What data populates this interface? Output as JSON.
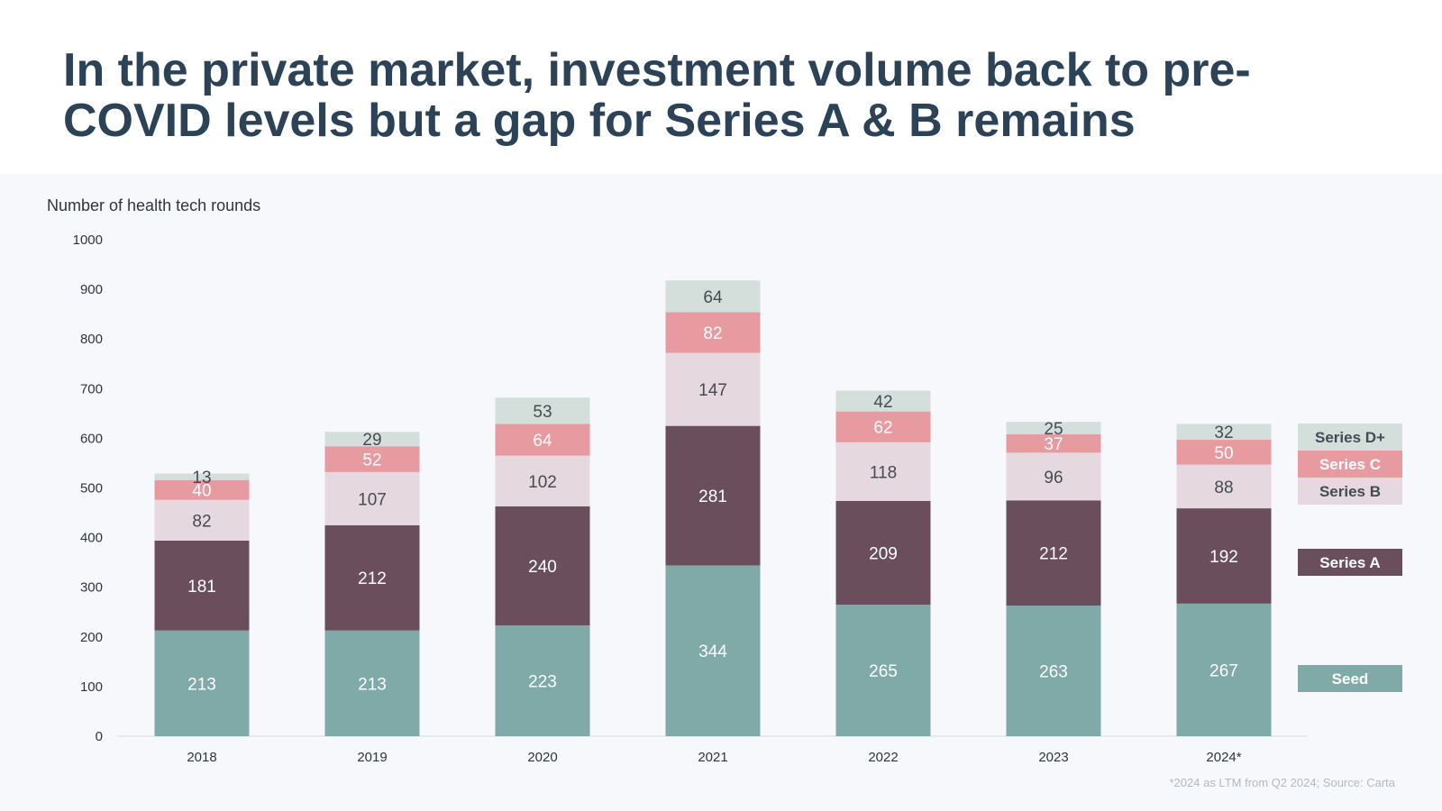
{
  "title": "In the private market, investment volume back to pre-COVID levels but a gap for Series A & B remains",
  "y_axis_title": "Number of health tech rounds",
  "footnote": "*2024 as LTM from Q2 2024; Source: Carta",
  "colors": {
    "Seed": "#7faaa7",
    "Series A": "#6b4e5c",
    "Series B": "#e5d9df",
    "Series C": "#e79ba1",
    "Series D+": "#d4dfdc"
  },
  "label_colors": {
    "Seed": "#ffffff",
    "Series A": "#ffffff",
    "Series B": "#454b52",
    "Series C": "#ffffff",
    "Series D+": "#454b52"
  },
  "chart_data": {
    "type": "bar",
    "stacked": true,
    "categories": [
      "2018",
      "2019",
      "2020",
      "2021",
      "2022",
      "2023",
      "2024*"
    ],
    "series": [
      {
        "name": "Seed",
        "values": [
          213,
          213,
          223,
          344,
          265,
          263,
          267
        ]
      },
      {
        "name": "Series A",
        "values": [
          181,
          212,
          240,
          281,
          209,
          212,
          192
        ]
      },
      {
        "name": "Series B",
        "values": [
          82,
          107,
          102,
          147,
          118,
          96,
          88
        ]
      },
      {
        "name": "Series C",
        "values": [
          40,
          52,
          64,
          82,
          62,
          37,
          50
        ]
      },
      {
        "name": "Series D+",
        "values": [
          13,
          29,
          53,
          64,
          42,
          25,
          32
        ]
      }
    ],
    "ylim": [
      0,
      1000
    ],
    "yticks": [
      0,
      100,
      200,
      300,
      400,
      500,
      600,
      700,
      800,
      900,
      1000
    ],
    "legend": [
      {
        "name": "Series D+",
        "label": "Series D+"
      },
      {
        "name": "Series C",
        "label": "Series C"
      },
      {
        "name": "Series B",
        "label": "Series B"
      },
      {
        "name": "Series A",
        "label": "Series A"
      },
      {
        "name": "Seed",
        "label": "Seed"
      }
    ],
    "legend_position": "right"
  }
}
